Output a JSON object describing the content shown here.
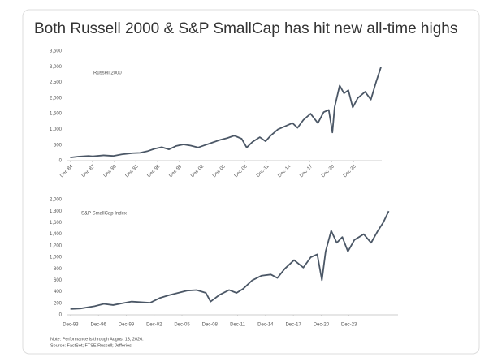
{
  "header": {
    "title": "Both Russell 2000 & S&P SmallCap has hit new all-time highs"
  },
  "notes": [
    "Note: Performance is through August 13, 2026.",
    "Source: FactSet; FTSE Russell; Jefferies"
  ],
  "chart_data": [
    {
      "type": "line",
      "x": [
        1984.9,
        1986,
        1987.5,
        1988,
        1989.5,
        1990.8,
        1992,
        1993.5,
        1994.5,
        1995.5,
        1996.5,
        1997.5,
        1998.5,
        1999.5,
        2000.5,
        2001.5,
        2002.5,
        2003.5,
        2004.5,
        2005.5,
        2006.5,
        2007.5,
        2008.5,
        2009.2,
        2010,
        2011,
        2011.8,
        2012.5,
        2013.5,
        2014.5,
        2015.5,
        2016.2,
        2017,
        2018,
        2019,
        2019.8,
        2020.5,
        2021,
        2021.3,
        2022,
        2022.6,
        2023.2,
        2023.8,
        2024.5,
        2025.5,
        2026.3,
        2027,
        2027.7
      ],
      "series": [
        {
          "name": "Russell 2000",
          "color": "#4b5766",
          "values": [
            100,
            130,
            150,
            140,
            170,
            150,
            200,
            240,
            250,
            300,
            380,
            430,
            360,
            470,
            520,
            480,
            420,
            500,
            580,
            660,
            720,
            800,
            700,
            420,
            600,
            750,
            620,
            800,
            1000,
            1100,
            1200,
            1050,
            1300,
            1500,
            1200,
            1550,
            1620,
            900,
            1700,
            2400,
            2150,
            2250,
            1700,
            2000,
            2200,
            1950,
            2500,
            3000
          ]
        }
      ],
      "xlim": [
        1984.4,
        2027.8
      ],
      "xticks": [
        {
          "value": 1984.92,
          "label": "Dec-84"
        },
        {
          "value": 1987.92,
          "label": "Dec-87"
        },
        {
          "value": 1990.92,
          "label": "Dec-90"
        },
        {
          "value": 1993.92,
          "label": "Dec-93"
        },
        {
          "value": 1996.92,
          "label": "Dec-96"
        },
        {
          "value": 1999.92,
          "label": "Dec-99"
        },
        {
          "value": 2002.92,
          "label": "Dec-02"
        },
        {
          "value": 2005.92,
          "label": "Dec-05"
        },
        {
          "value": 2008.92,
          "label": "Dec-08"
        },
        {
          "value": 2011.92,
          "label": "Dec-11"
        },
        {
          "value": 2014.92,
          "label": "Dec-14"
        },
        {
          "value": 2017.92,
          "label": "Dec-17"
        },
        {
          "value": 2020.92,
          "label": "Dec-20"
        },
        {
          "value": 2023.92,
          "label": "Dec-23"
        }
      ],
      "ylim": [
        0,
        3500
      ],
      "yticks": [
        0,
        500,
        {
          "value": 1000,
          "label": "1,000"
        },
        {
          "value": 1500,
          "label": "1,500"
        },
        {
          "value": 2000,
          "label": "2,000"
        },
        {
          "value": 2500,
          "label": "2,500"
        },
        {
          "value": 3000,
          "label": "3,000"
        },
        {
          "value": 3500,
          "label": "3,500"
        }
      ]
    },
    {
      "type": "line",
      "x": [
        1993.9,
        1995,
        1996.5,
        1997.5,
        1998.5,
        1999.5,
        2000.5,
        2001.5,
        2002.5,
        2003.5,
        2004.5,
        2005.5,
        2006.5,
        2007.5,
        2008.5,
        2009,
        2010,
        2011,
        2011.8,
        2012.5,
        2013.5,
        2014.5,
        2015.5,
        2016.2,
        2017,
        2018,
        2019,
        2019.8,
        2020.5,
        2021,
        2021.4,
        2022,
        2022.6,
        2023.2,
        2023.8,
        2024.5,
        2025.5,
        2026.3,
        2027,
        2027.6,
        2028.2
      ],
      "series": [
        {
          "name": "S&P SmallCap Index",
          "color": "#4b5766",
          "values": [
            100,
            110,
            150,
            190,
            170,
            200,
            230,
            220,
            210,
            290,
            340,
            380,
            420,
            430,
            380,
            230,
            350,
            430,
            380,
            450,
            600,
            680,
            700,
            640,
            800,
            950,
            820,
            1000,
            1050,
            600,
            1100,
            1460,
            1250,
            1350,
            1100,
            1300,
            1400,
            1250,
            1450,
            1600,
            1800
          ]
        }
      ],
      "xlim": [
        1993.49,
        2029.2
      ],
      "xticks": [
        {
          "value": 1993.92,
          "label": "Dec-93"
        },
        {
          "value": 1996.92,
          "label": "Dec-96"
        },
        {
          "value": 1999.92,
          "label": "Dec-99"
        },
        {
          "value": 2002.92,
          "label": "Dec-02"
        },
        {
          "value": 2005.92,
          "label": "Dec-05"
        },
        {
          "value": 2008.92,
          "label": "Dec-08"
        },
        {
          "value": 2011.92,
          "label": "Dec-11"
        },
        {
          "value": 2014.92,
          "label": "Dec-14"
        },
        {
          "value": 2017.92,
          "label": "Dec-17"
        },
        {
          "value": 2020.92,
          "label": "Dec-20"
        },
        {
          "value": 2023.92,
          "label": "Dec-23"
        }
      ],
      "ylim": [
        0,
        2000
      ],
      "yticks": [
        0,
        200,
        400,
        600,
        800,
        {
          "value": 1000,
          "label": "1,000"
        },
        {
          "value": 1200,
          "label": "1,200"
        },
        {
          "value": 1400,
          "label": "1,400"
        },
        {
          "value": 1600,
          "label": "1,600"
        },
        {
          "value": 1800,
          "label": "1,800"
        },
        {
          "value": 2000,
          "label": "2,000"
        }
      ]
    }
  ]
}
